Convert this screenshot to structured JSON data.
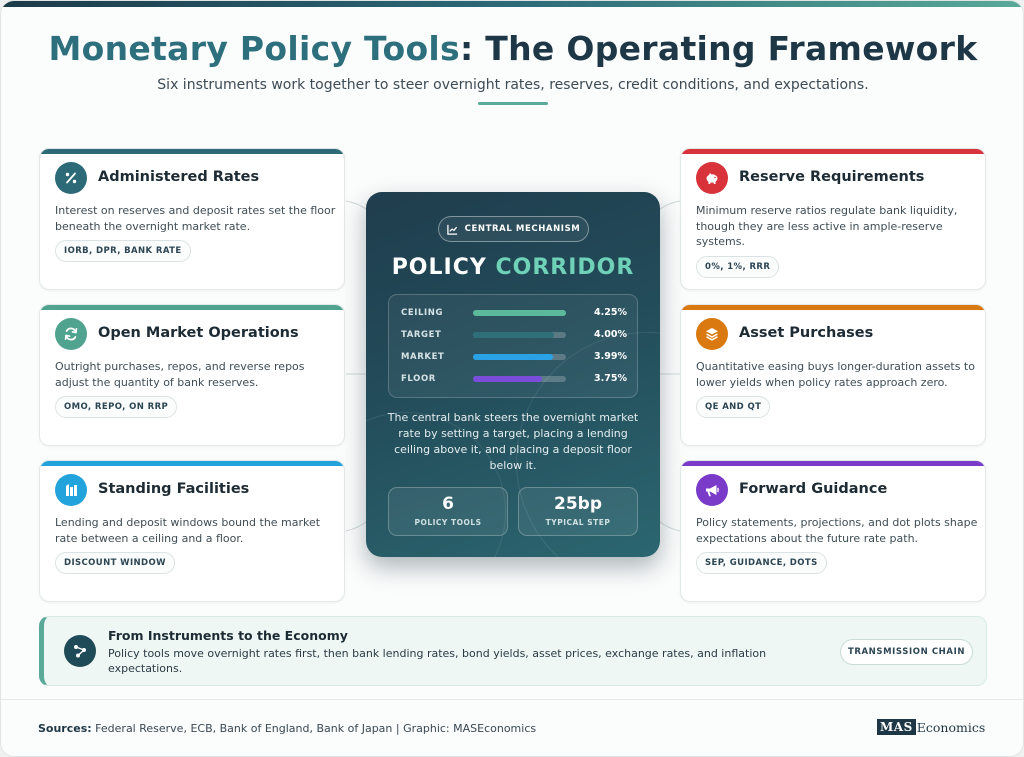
{
  "header": {
    "title_part1": "Monetary Policy Tools",
    "title_part2": ": The Operating Framework",
    "subtitle": "Six instruments work together to steer overnight rates, reserves, credit conditions, and expectations."
  },
  "tools": [
    {
      "title": "Administered Rates",
      "desc": "Interest on reserves and deposit rates set the floor beneath the overnight market rate.",
      "tag": "IORB, DPR, BANK RATE",
      "icon": "percent-icon",
      "color": "#2d6a78"
    },
    {
      "title": "Open Market Operations",
      "desc": "Outright purchases, repos, and reverse repos adjust the quantity of bank reserves.",
      "tag": "OMO, REPO, ON RRP",
      "icon": "refresh-icon",
      "color": "#4fa38f"
    },
    {
      "title": "Standing Facilities",
      "desc": "Lending and deposit windows bound the market rate between a ceiling and a floor.",
      "tag": "DISCOUNT WINDOW",
      "icon": "bank-icon",
      "color": "#23a3dc"
    },
    {
      "title": "Reserve Requirements",
      "desc": "Minimum reserve ratios regulate bank liquidity, though they are less active in ample-reserve systems.",
      "tag": "0%, 1%, RRR",
      "icon": "piggy-bank-icon",
      "color": "#d8323a"
    },
    {
      "title": "Asset Purchases",
      "desc": "Quantitative easing buys longer-duration assets to lower yields when policy rates approach zero.",
      "tag": "QE AND QT",
      "icon": "layers-icon",
      "color": "#d9790f"
    },
    {
      "title": "Forward Guidance",
      "desc": "Policy statements, projections, and dot plots shape expectations about the future rate path.",
      "tag": "SEP, GUIDANCE, DOTS",
      "icon": "megaphone-icon",
      "color": "#7a3bc8"
    }
  ],
  "center": {
    "badge": "CENTRAL MECHANISM",
    "title_part1": "POLICY",
    "title_part2": "CORRIDOR",
    "rates": [
      {
        "label": "CEILING",
        "value": "4.25%",
        "level": 1.0,
        "color": "#5cb99c"
      },
      {
        "label": "TARGET",
        "value": "4.00%",
        "level": 0.87,
        "color": "#2f6f7a"
      },
      {
        "label": "MARKET",
        "value": "3.99%",
        "level": 0.86,
        "color": "#2aa3e6"
      },
      {
        "label": "FLOOR",
        "value": "3.75%",
        "level": 0.74,
        "color": "#7b4ddb"
      }
    ],
    "description": "The central bank steers the overnight market rate by setting a target, placing a lending ceiling above it, and placing a deposit floor below it.",
    "stats": [
      {
        "value": "6",
        "label": "POLICY TOOLS"
      },
      {
        "value": "25bp",
        "label": "TYPICAL STEP"
      }
    ]
  },
  "transmission": {
    "title": "From Instruments to the Economy",
    "desc": "Policy tools move overnight rates first, then bank lending rates, bond yields, asset prices, exchange rates, and inflation expectations.",
    "badge": "TRANSMISSION CHAIN",
    "icon": "network-icon"
  },
  "footer": {
    "sources_label": "Sources:",
    "sources_text": "Federal Reserve, ECB, Bank of England, Bank of Japan | Graphic: MASEconomics",
    "logo_mas": "MAS",
    "logo_economics": "Economics"
  }
}
